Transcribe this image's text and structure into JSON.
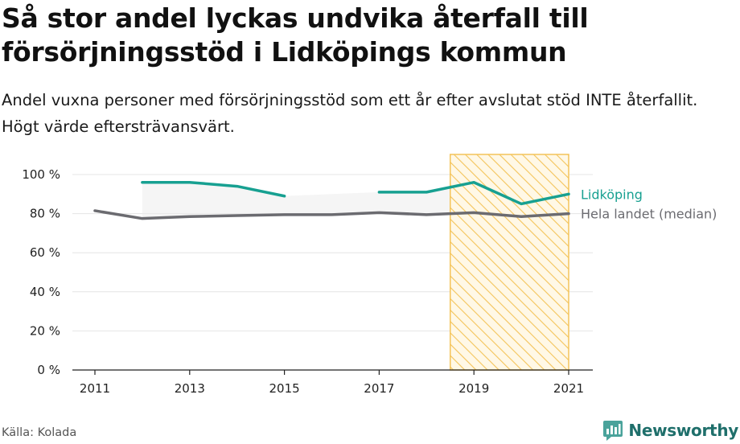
{
  "title": "Så stor andel lyckas undvika återfall till försörjningsstöd i Lidköpings kommun",
  "subtitle": "Andel vuxna personer med försörjningsstöd som ett år efter avslutat stöd INTE återfallit. Högt värde eftersträvansvärt.",
  "source": "Källa: Kolada",
  "brand": "Newsworthy",
  "colors": {
    "lidkoping": "#17a091",
    "median": "#6b6b70",
    "highlight": "#f4c45a",
    "band": "#ededed"
  },
  "chart_data": {
    "type": "line",
    "x": [
      2011,
      2012,
      2013,
      2014,
      2015,
      2016,
      2017,
      2018,
      2019,
      2020,
      2021
    ],
    "xticks": [
      "2011",
      "2013",
      "2015",
      "2017",
      "2019",
      "2021"
    ],
    "yticks": [
      "0 %",
      "20 %",
      "40 %",
      "60 %",
      "80 %",
      "100 %"
    ],
    "ylim": [
      0,
      100
    ],
    "grid": true,
    "highlight_range": [
      2018.5,
      2021
    ],
    "series": [
      {
        "name": "Lidköping",
        "color": "#17a091",
        "values": [
          null,
          96,
          96,
          94,
          89,
          null,
          91,
          91,
          96,
          85,
          90
        ]
      },
      {
        "name": "Hela landet (median)",
        "color": "#6b6b70",
        "values": [
          81.5,
          77.5,
          78.5,
          79,
          79.5,
          79.5,
          80.5,
          79.5,
          80.5,
          78.5,
          80
        ]
      }
    ]
  }
}
